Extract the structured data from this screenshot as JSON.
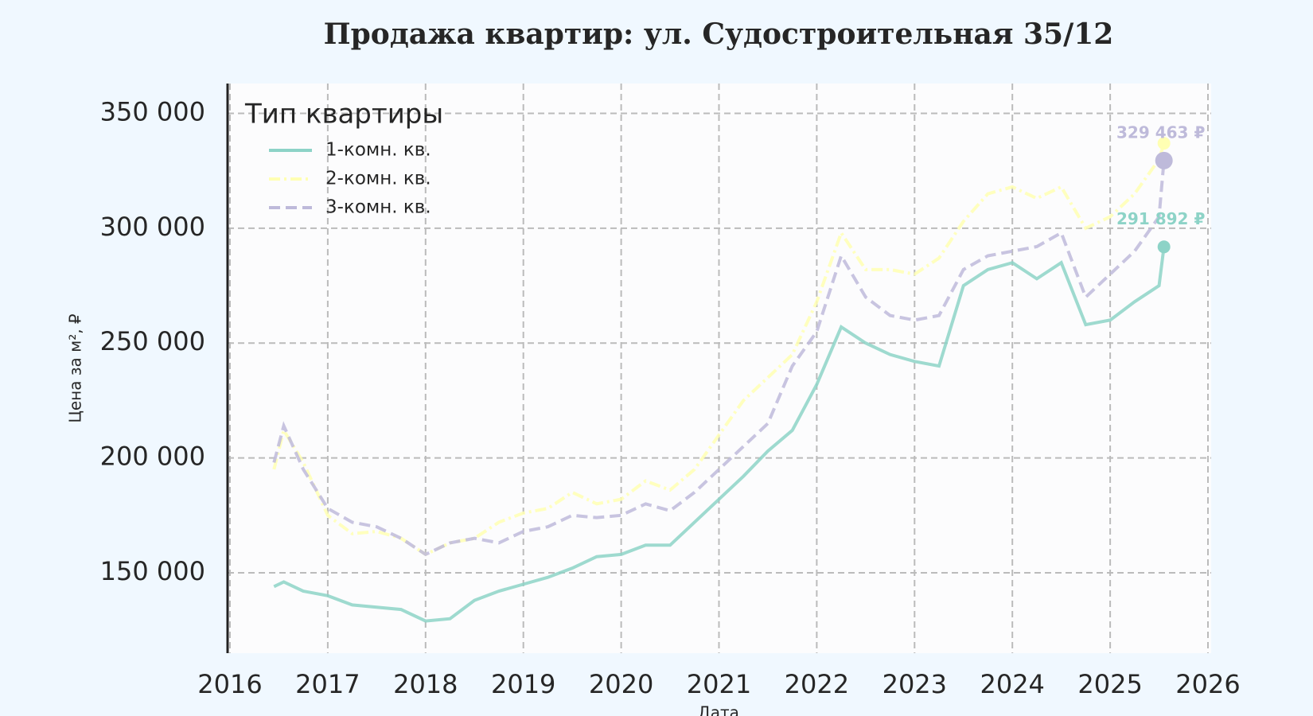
{
  "chart_data": {
    "type": "line",
    "title": "Продажа квартир: ул. Судостроительная 35/12",
    "xlabel": "Дата",
    "ylabel": "Цена за м², ₽",
    "legend_title": "Тип квартиры",
    "legend_position": "upper left",
    "grid": true,
    "xlim": [
      2016,
      2026
    ],
    "xticks": [
      2016,
      2017,
      2018,
      2019,
      2020,
      2021,
      2022,
      2023,
      2024,
      2025,
      2026
    ],
    "ylim": [
      115000,
      363000
    ],
    "yticks": [
      {
        "value": 150000,
        "label": "150 000"
      },
      {
        "value": 200000,
        "label": "200 000"
      },
      {
        "value": 250000,
        "label": "250 000"
      },
      {
        "value": 300000,
        "label": "300 000"
      },
      {
        "value": 350000,
        "label": "350 000"
      }
    ],
    "x": [
      2016.45,
      2016.55,
      2016.75,
      2017.0,
      2017.25,
      2017.5,
      2017.75,
      2018.0,
      2018.25,
      2018.5,
      2018.75,
      2019.0,
      2019.25,
      2019.5,
      2019.75,
      2020.0,
      2020.25,
      2020.5,
      2020.75,
      2021.0,
      2021.25,
      2021.5,
      2021.75,
      2022.0,
      2022.25,
      2022.5,
      2022.75,
      2023.0,
      2023.25,
      2023.5,
      2023.75,
      2024.0,
      2024.25,
      2024.5,
      2024.75,
      2025.0,
      2025.25,
      2025.5,
      2025.55
    ],
    "series": [
      {
        "name": "1-комн. кв.",
        "color": "#8dd3c7",
        "linestyle": "solid",
        "values": [
          144000,
          146000,
          142000,
          140000,
          136000,
          135000,
          134000,
          129000,
          130000,
          138000,
          142000,
          145000,
          148000,
          152000,
          157000,
          158000,
          162000,
          162000,
          172000,
          182000,
          192000,
          203000,
          212000,
          232000,
          257000,
          250000,
          245000,
          242000,
          240000,
          275000,
          282000,
          285000,
          278000,
          285000,
          258000,
          260000,
          268000,
          275000,
          291892
        ]
      },
      {
        "name": "2-комн. кв.",
        "color": "#ffffb3",
        "linestyle": "dashdot",
        "values": [
          195000,
          212000,
          198000,
          175000,
          167000,
          168000,
          165000,
          158000,
          163000,
          165000,
          172000,
          176000,
          178000,
          185000,
          180000,
          182000,
          190000,
          186000,
          195000,
          210000,
          225000,
          235000,
          245000,
          268000,
          298000,
          282000,
          282000,
          280000,
          287000,
          303000,
          315000,
          318000,
          313000,
          318000,
          300000,
          305000,
          315000,
          330000,
          337000
        ]
      },
      {
        "name": "3-комн. кв.",
        "color": "#bebada",
        "linestyle": "dashed",
        "values": [
          198000,
          214000,
          195000,
          178000,
          172000,
          170000,
          165000,
          158000,
          163000,
          165000,
          163000,
          168000,
          170000,
          175000,
          174000,
          175000,
          180000,
          177000,
          185000,
          195000,
          205000,
          215000,
          240000,
          255000,
          288000,
          270000,
          262000,
          260000,
          262000,
          282000,
          288000,
          290000,
          292000,
          298000,
          270000,
          280000,
          290000,
          305000,
          329463
        ]
      }
    ],
    "annotations": [
      {
        "x": 2025.55,
        "y": 329463,
        "label": "329 463 ₽",
        "color": "#bebada"
      },
      {
        "x": 2025.55,
        "y": 291892,
        "label": "291 892 ₽",
        "color": "#8dd3c7"
      }
    ]
  }
}
